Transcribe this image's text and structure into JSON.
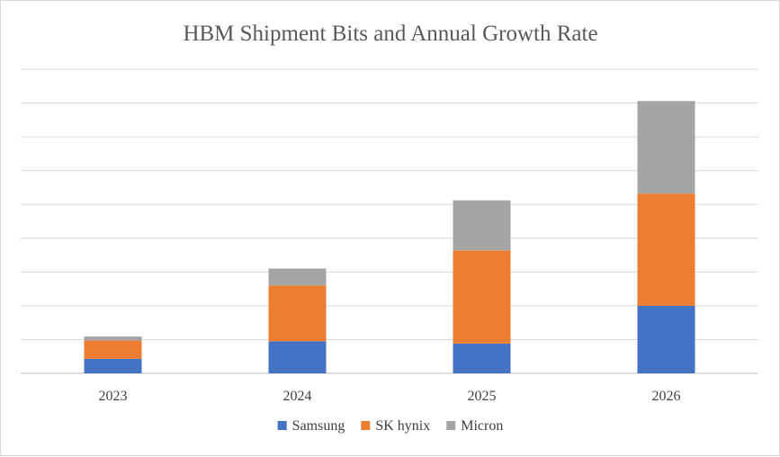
{
  "chart_data": {
    "type": "bar",
    "stacked": true,
    "title": "HBM Shipment Bits and Annual Growth Rate",
    "xlabel": "",
    "ylabel": "",
    "categories": [
      "2023",
      "2024",
      "2025",
      "2026"
    ],
    "series": [
      {
        "name": "Samsung",
        "color": "#4472c4",
        "values": [
          0.43,
          0.95,
          0.88,
          2.0
        ]
      },
      {
        "name": "SK hynix",
        "color": "#ed7d31",
        "values": [
          0.54,
          1.65,
          2.76,
          3.32
        ]
      },
      {
        "name": "Micron",
        "color": "#a5a5a5",
        "values": [
          0.12,
          0.5,
          1.48,
          2.74
        ]
      }
    ],
    "ylim": [
      0,
      9
    ],
    "y_gridlines": 9,
    "y_tick_labels_shown": false,
    "grid": true,
    "legend_position": "bottom"
  }
}
